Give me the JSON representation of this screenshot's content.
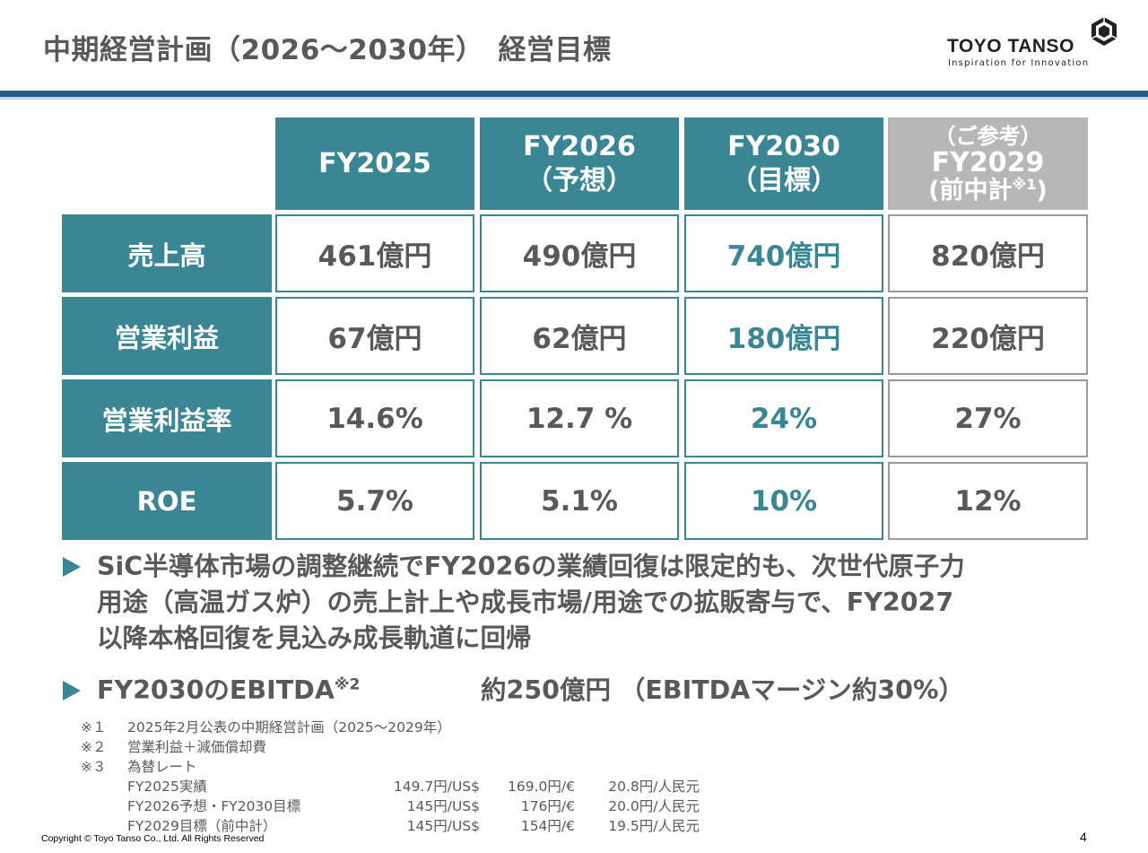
{
  "title": "中期経営計画（2026～2030年）　経営目標",
  "logo": {
    "name": "TOYO TANSO",
    "tagline": "Inspiration for Innovation"
  },
  "table": {
    "columns": [
      {
        "line1": "FY2025"
      },
      {
        "line1": "FY2026",
        "line2": "（予想）"
      },
      {
        "line1": "FY2030",
        "line2": "（目標）"
      },
      {
        "pre": "（ご参考）",
        "line1": "FY2029",
        "line2": "(前中計",
        "note": "※1",
        "close": ")"
      }
    ],
    "rows": [
      {
        "label": "売上高",
        "values": [
          "461億円",
          "490億円",
          "740億円",
          "820億円"
        ]
      },
      {
        "label": "営業利益",
        "values": [
          "67億円",
          "62億円",
          "180億円",
          "220億円"
        ]
      },
      {
        "label": "営業利益率",
        "values": [
          "14.6%",
          "12.7 %",
          "24%",
          "27%"
        ]
      },
      {
        "label": "ROE",
        "values": [
          "5.7%",
          "5.1%",
          "10%",
          "12%"
        ]
      }
    ],
    "accent_color": "#3b8694",
    "reference_color": "#b7b7b7"
  },
  "bullets": {
    "first": [
      "SiC半導体市場の調整継続でFY2026の業績回復は限定的も、次世代原子力",
      "用途（高温ガス炉）の売上計上や成長市場/用途での拡販寄与で、FY2027",
      "以降本格回復を見込み成長軌道に回帰"
    ],
    "second": {
      "label": "FY2030のEBITDA",
      "note": "※2",
      "value": "約250億円 （EBITDAマージン約30%）"
    }
  },
  "notes": [
    {
      "mark": "※１",
      "text": "2025年2月公表の中期経営計画（2025～2029年）"
    },
    {
      "mark": "※２",
      "text": "営業利益＋減価償却費"
    },
    {
      "mark": "※３",
      "text": "為替レート"
    }
  ],
  "rates": [
    {
      "label": "FY2025実績",
      "usd": "149.7円/US$",
      "eur": "169.0円/€",
      "cny": "20.8円/人民元"
    },
    {
      "label": "FY2026予想・FY2030目標",
      "usd": "145円/US$",
      "eur": "176円/€",
      "cny": "20.0円/人民元"
    },
    {
      "label": "FY2029目標（前中計）",
      "usd": "145円/US$",
      "eur": "154円/€",
      "cny": "19.5円/人民元"
    }
  ],
  "footer": {
    "copyright": "Copyright © Toyo Tanso Co., Ltd. All Rights Reserved",
    "page": "4"
  }
}
